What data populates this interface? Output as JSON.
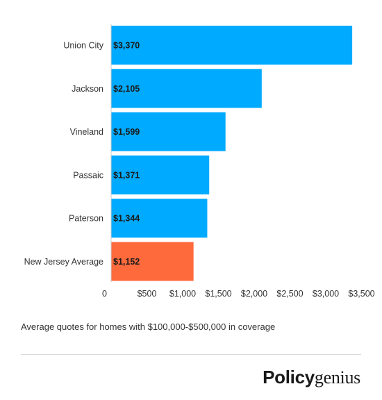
{
  "chart_data": {
    "type": "bar",
    "orientation": "horizontal",
    "categories": [
      "Union City",
      "Jackson",
      "Vineland",
      "Passaic",
      "Paterson",
      "New Jersey Average"
    ],
    "values": [
      3370,
      2105,
      1599,
      1371,
      1344,
      1152
    ],
    "value_labels": [
      "$3,370",
      "$2,105",
      "$1,599",
      "$1,371",
      "$1,344",
      "$1,152"
    ],
    "bar_colors": [
      "#00aaff",
      "#00aaff",
      "#00aaff",
      "#00aaff",
      "#00aaff",
      "#ff6a3d"
    ],
    "xlim": [
      0,
      3500
    ],
    "x_ticks": [
      0,
      500,
      1000,
      1500,
      2000,
      2500,
      3000,
      3500
    ],
    "x_tick_labels": [
      "0",
      "$500",
      "$1,000",
      "$1,500",
      "$2,000",
      "$2,500",
      "$3,000",
      "$3,500"
    ],
    "grid": false
  },
  "caption": "Average quotes for homes with $100,000-$500,000 in coverage",
  "logo": {
    "bold": "Policy",
    "light": "genius"
  }
}
